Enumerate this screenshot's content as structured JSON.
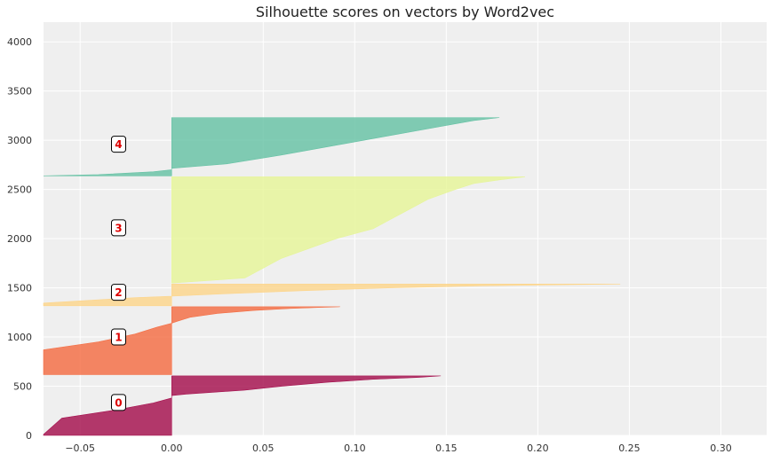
{
  "chart_data": {
    "type": "area",
    "title": "Silhouette scores on vectors by Word2vec",
    "xlabel": "",
    "ylabel": "",
    "xlim": [
      -0.07,
      0.325
    ],
    "ylim": [
      0,
      4200
    ],
    "xticks": [
      -0.05,
      0.0,
      0.05,
      0.1,
      0.15,
      0.2,
      0.25,
      0.3
    ],
    "xtick_labels": [
      "−0.05",
      "0.00",
      "0.05",
      "0.10",
      "0.15",
      "0.20",
      "0.25",
      "0.30"
    ],
    "yticks": [
      0,
      500,
      1000,
      1500,
      2000,
      2500,
      3000,
      3500,
      4000
    ],
    "ytick_labels": [
      "0",
      "500",
      "1000",
      "1500",
      "2000",
      "2500",
      "3000",
      "3500",
      "4000"
    ],
    "grid": true,
    "series": [
      {
        "name": "0",
        "color": "#a50f4d",
        "y_range": [
          0,
          605
        ],
        "label_pos": [
          -0.029,
          335
        ],
        "profile": [
          [
            0,
            -0.07
          ],
          [
            10,
            -0.07
          ],
          [
            175,
            -0.06
          ],
          [
            260,
            -0.03
          ],
          [
            330,
            -0.01
          ],
          [
            380,
            0
          ],
          [
            405,
            0
          ],
          [
            420,
            0.008
          ],
          [
            460,
            0.04
          ],
          [
            500,
            0.06
          ],
          [
            540,
            0.085
          ],
          [
            570,
            0.11
          ],
          [
            590,
            0.135
          ],
          [
            605,
            0.147
          ]
        ]
      },
      {
        "name": "1",
        "color": "#f46d43",
        "y_range": [
          618,
          1308
        ],
        "label_pos": [
          -0.029,
          1000
        ],
        "profile": [
          [
            618,
            -0.07
          ],
          [
            870,
            -0.07
          ],
          [
            950,
            -0.04
          ],
          [
            1030,
            -0.02
          ],
          [
            1100,
            -0.008
          ],
          [
            1140,
            0
          ],
          [
            1160,
            0.003
          ],
          [
            1200,
            0.01
          ],
          [
            1240,
            0.025
          ],
          [
            1270,
            0.045
          ],
          [
            1290,
            0.065
          ],
          [
            1300,
            0.08
          ],
          [
            1308,
            0.092
          ]
        ]
      },
      {
        "name": "2",
        "color": "#fdd58b",
        "y_range": [
          1318,
          1538
        ],
        "label_pos": [
          -0.029,
          1455
        ],
        "profile": [
          [
            1318,
            -0.07
          ],
          [
            1345,
            -0.07
          ],
          [
            1400,
            -0.02
          ],
          [
            1415,
            0
          ],
          [
            1440,
            0.03
          ],
          [
            1470,
            0.07
          ],
          [
            1500,
            0.12
          ],
          [
            1520,
            0.17
          ],
          [
            1530,
            0.21
          ],
          [
            1538,
            0.245
          ]
        ]
      },
      {
        "name": "3",
        "color": "#e6f598",
        "y_range": [
          1548,
          2628
        ],
        "label_pos": [
          -0.029,
          2110
        ],
        "profile": [
          [
            1548,
            0
          ],
          [
            1600,
            0.04
          ],
          [
            1700,
            0.05
          ],
          [
            1800,
            0.06
          ],
          [
            1900,
            0.075
          ],
          [
            2000,
            0.09
          ],
          [
            2100,
            0.11
          ],
          [
            2200,
            0.12
          ],
          [
            2300,
            0.13
          ],
          [
            2400,
            0.14
          ],
          [
            2500,
            0.155
          ],
          [
            2560,
            0.165
          ],
          [
            2600,
            0.18
          ],
          [
            2628,
            0.193
          ]
        ]
      },
      {
        "name": "4",
        "color": "#66c2a5",
        "y_range": [
          2638,
          3230
        ],
        "label_pos": [
          -0.029,
          2960
        ],
        "profile": [
          [
            2638,
            -0.07
          ],
          [
            2650,
            -0.04
          ],
          [
            2680,
            -0.01
          ],
          [
            2700,
            0
          ],
          [
            2715,
            0
          ],
          [
            2760,
            0.03
          ],
          [
            2850,
            0.06
          ],
          [
            2950,
            0.09
          ],
          [
            3050,
            0.12
          ],
          [
            3150,
            0.15
          ],
          [
            3200,
            0.165
          ],
          [
            3230,
            0.179
          ]
        ]
      }
    ]
  },
  "label_text_color": "#dd0000",
  "plot_bg": "#efefef"
}
